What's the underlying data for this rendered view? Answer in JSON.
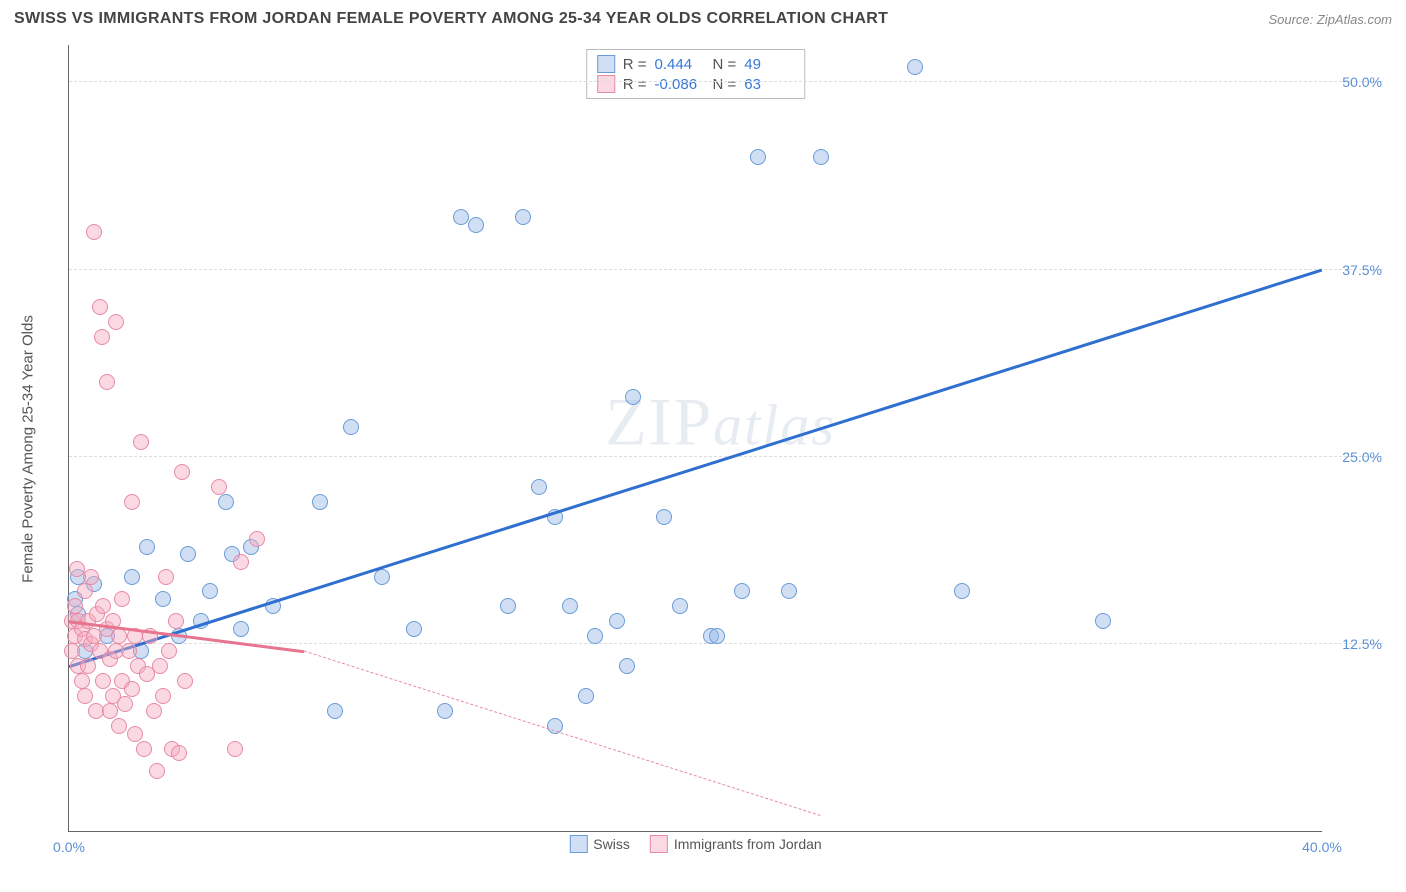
{
  "header": {
    "title": "SWISS VS IMMIGRANTS FROM JORDAN FEMALE POVERTY AMONG 25-34 YEAR OLDS CORRELATION CHART",
    "source": "Source: ZipAtlas.com"
  },
  "watermark": {
    "zip": "ZIP",
    "atlas": "atlas"
  },
  "chart": {
    "type": "scatter",
    "background_color": "#ffffff",
    "grid_color": "#dddddd",
    "axis_color": "#666666",
    "tick_label_color": "#5b8fd6",
    "axis_label_color": "#555555",
    "y_axis_label": "Female Poverty Among 25-34 Year Olds",
    "xlim": [
      0,
      40
    ],
    "ylim": [
      0,
      52.5
    ],
    "y_ticks": [
      12.5,
      25.0,
      37.5,
      50.0
    ],
    "y_tick_labels": [
      "12.5%",
      "25.0%",
      "37.5%",
      "50.0%"
    ],
    "x_ticks": [
      0,
      40
    ],
    "x_tick_labels": [
      "0.0%",
      "40.0%"
    ],
    "marker_radius": 8,
    "marker_stroke_width": 1.2,
    "series": [
      {
        "name": "Swiss",
        "fill_color": "rgba(150,185,230,0.45)",
        "stroke_color": "#6a9bd8",
        "line_color": "#2f6fd0",
        "r_value": "0.444",
        "n_value": "49",
        "trend": {
          "x1": 0,
          "y1": 11,
          "x2": 40,
          "y2": 37.5,
          "dash_from_x": 40
        },
        "points": [
          [
            0.2,
            15.5
          ],
          [
            0.3,
            14.5
          ],
          [
            0.3,
            17
          ],
          [
            0.5,
            12
          ],
          [
            0.8,
            16.5
          ],
          [
            1.2,
            13
          ],
          [
            2,
            17
          ],
          [
            2.3,
            12
          ],
          [
            2.5,
            19
          ],
          [
            3,
            15.5
          ],
          [
            3.5,
            13
          ],
          [
            3.8,
            18.5
          ],
          [
            4.2,
            14
          ],
          [
            4.5,
            16
          ],
          [
            5,
            22
          ],
          [
            5.2,
            18.5
          ],
          [
            5.5,
            13.5
          ],
          [
            5.8,
            19
          ],
          [
            6.5,
            15
          ],
          [
            8,
            22
          ],
          [
            9,
            27
          ],
          [
            10,
            17
          ],
          [
            11,
            13.5
          ],
          [
            12,
            8
          ],
          [
            12.5,
            41
          ],
          [
            14,
            15
          ],
          [
            14.5,
            41
          ],
          [
            15,
            23
          ],
          [
            15.5,
            21
          ],
          [
            16,
            15
          ],
          [
            16.5,
            9
          ],
          [
            16.8,
            13
          ],
          [
            17.5,
            14
          ],
          [
            17.8,
            11
          ],
          [
            18,
            29
          ],
          [
            19,
            21
          ],
          [
            19.5,
            15
          ],
          [
            20.5,
            13
          ],
          [
            20.7,
            13
          ],
          [
            21.5,
            16
          ],
          [
            22,
            45
          ],
          [
            23,
            16
          ],
          [
            24,
            45
          ],
          [
            27,
            51
          ],
          [
            28.5,
            16
          ],
          [
            33,
            14
          ],
          [
            15.5,
            7
          ],
          [
            8.5,
            8
          ],
          [
            13,
            40.5
          ]
        ]
      },
      {
        "name": "Immigrants from Jordan",
        "fill_color": "rgba(245,170,190,0.45)",
        "stroke_color": "#e88aa5",
        "line_color": "#e97490",
        "r_value": "-0.086",
        "n_value": "63",
        "trend": {
          "x1": 0,
          "y1": 14,
          "x2": 7.5,
          "y2": 12,
          "dash_from_x": 7.5,
          "dash_x2": 24,
          "dash_y2": 1
        },
        "points": [
          [
            0.1,
            12
          ],
          [
            0.1,
            14
          ],
          [
            0.2,
            13
          ],
          [
            0.2,
            15
          ],
          [
            0.25,
            17.5
          ],
          [
            0.3,
            14
          ],
          [
            0.3,
            11
          ],
          [
            0.4,
            13.5
          ],
          [
            0.4,
            10
          ],
          [
            0.5,
            12.8
          ],
          [
            0.5,
            16
          ],
          [
            0.5,
            9
          ],
          [
            0.6,
            14
          ],
          [
            0.6,
            11
          ],
          [
            0.7,
            12.5
          ],
          [
            0.7,
            17
          ],
          [
            0.8,
            13
          ],
          [
            0.8,
            40
          ],
          [
            0.85,
            8
          ],
          [
            0.9,
            14.5
          ],
          [
            1,
            12
          ],
          [
            1,
            35
          ],
          [
            1.05,
            33
          ],
          [
            1.1,
            10
          ],
          [
            1.1,
            15
          ],
          [
            1.2,
            30
          ],
          [
            1.2,
            13.5
          ],
          [
            1.3,
            8
          ],
          [
            1.3,
            11.5
          ],
          [
            1.4,
            9
          ],
          [
            1.4,
            14
          ],
          [
            1.5,
            34
          ],
          [
            1.5,
            12
          ],
          [
            1.6,
            13
          ],
          [
            1.6,
            7
          ],
          [
            1.7,
            10
          ],
          [
            1.7,
            15.5
          ],
          [
            1.8,
            8.5
          ],
          [
            1.9,
            12
          ],
          [
            2,
            22
          ],
          [
            2,
            9.5
          ],
          [
            2.1,
            13
          ],
          [
            2.1,
            6.5
          ],
          [
            2.2,
            11
          ],
          [
            2.3,
            26
          ],
          [
            2.4,
            5.5
          ],
          [
            2.5,
            10.5
          ],
          [
            2.6,
            13
          ],
          [
            2.7,
            8
          ],
          [
            2.8,
            4
          ],
          [
            2.9,
            11
          ],
          [
            3,
            9
          ],
          [
            3.1,
            17
          ],
          [
            3.2,
            12
          ],
          [
            3.3,
            5.5
          ],
          [
            3.4,
            14
          ],
          [
            3.5,
            5.2
          ],
          [
            3.6,
            24
          ],
          [
            3.7,
            10
          ],
          [
            4.8,
            23
          ],
          [
            5.3,
            5.5
          ],
          [
            5.5,
            18
          ],
          [
            6,
            19.5
          ]
        ]
      }
    ],
    "stats_box": {
      "r_label": "R =",
      "n_label": "N ="
    },
    "legend": {
      "series1_label": "Swiss",
      "series2_label": "Immigrants from Jordan"
    }
  }
}
